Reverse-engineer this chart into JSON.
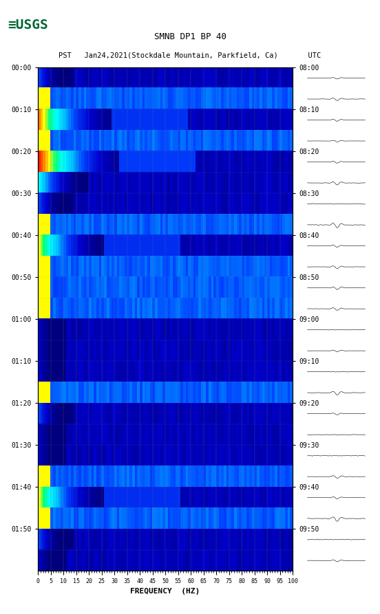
{
  "title1": "SMNB DP1 BP 40",
  "title2": "PST   Jan24,2021(Stockdale Mountain, Parkfield, Ca)       UTC",
  "xlabel": "FREQUENCY  (HZ)",
  "freq_ticks": [
    0,
    5,
    10,
    15,
    20,
    25,
    30,
    35,
    40,
    45,
    50,
    55,
    60,
    65,
    70,
    75,
    80,
    85,
    90,
    95,
    100
  ],
  "left_time_labels": [
    "00:00",
    "00:10",
    "00:20",
    "00:30",
    "00:40",
    "00:50",
    "01:00",
    "01:10",
    "01:20",
    "01:30",
    "01:40",
    "01:50"
  ],
  "right_time_labels": [
    "08:00",
    "08:10",
    "08:20",
    "08:30",
    "08:40",
    "08:50",
    "09:00",
    "09:10",
    "09:20",
    "09:30",
    "09:40",
    "09:50"
  ],
  "n_rows": 24,
  "n_cols": 100,
  "bg_color": "#ffffff",
  "spectrogram_bg": "#00008B",
  "active_row_color_low": "#0000FF",
  "active_row_color_high": "#FF0000",
  "figsize": [
    5.52,
    8.93
  ],
  "dpi": 100
}
